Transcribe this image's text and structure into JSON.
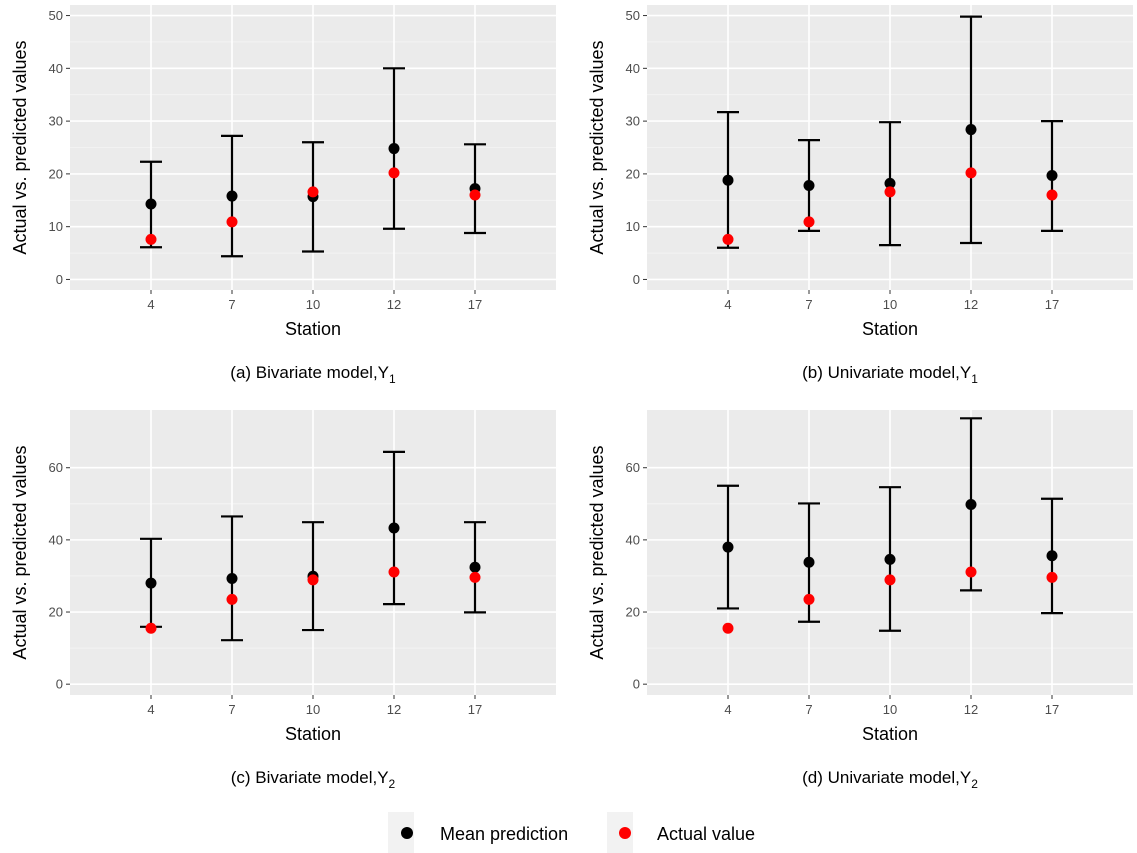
{
  "chart_data": [
    {
      "type": "scatter",
      "panel": "a",
      "caption": "(a) Bivariate model,Y",
      "caption_sub": "1",
      "xlabel": "Station",
      "ylabel": "Actual vs. predicted values",
      "categories": [
        "4",
        "7",
        "10",
        "12",
        "17"
      ],
      "ylim": [
        -2,
        52
      ],
      "yticks": [
        0,
        10,
        20,
        30,
        40,
        50
      ],
      "grid": true,
      "series": [
        {
          "name": "Mean prediction",
          "values": [
            14.3,
            15.8,
            15.7,
            24.8,
            17.2
          ]
        },
        {
          "name": "Actual value",
          "values": [
            7.6,
            10.9,
            16.6,
            20.2,
            16.0
          ]
        }
      ],
      "error_bars": {
        "lower": [
          6.1,
          4.4,
          5.3,
          9.6,
          8.8
        ],
        "upper": [
          22.3,
          27.2,
          26.0,
          40.0,
          25.6
        ]
      }
    },
    {
      "type": "scatter",
      "panel": "b",
      "caption": "(b) Univariate model,Y",
      "caption_sub": "1",
      "xlabel": "Station",
      "ylabel": "Actual vs. predicted values",
      "categories": [
        "4",
        "7",
        "10",
        "12",
        "17"
      ],
      "ylim": [
        -2,
        52
      ],
      "yticks": [
        0,
        10,
        20,
        30,
        40,
        50
      ],
      "grid": true,
      "series": [
        {
          "name": "Mean prediction",
          "values": [
            18.8,
            17.8,
            18.2,
            28.4,
            19.7
          ]
        },
        {
          "name": "Actual value",
          "values": [
            7.6,
            10.9,
            16.6,
            20.2,
            16.0
          ]
        }
      ],
      "error_bars": {
        "lower": [
          6.0,
          9.2,
          6.5,
          6.9,
          9.2
        ],
        "upper": [
          31.7,
          26.4,
          29.8,
          49.8,
          30.0
        ]
      }
    },
    {
      "type": "scatter",
      "panel": "c",
      "caption": "(c) Bivariate model,Y",
      "caption_sub": "2",
      "xlabel": "Station",
      "ylabel": "Actual vs. predicted  values",
      "categories": [
        "4",
        "7",
        "10",
        "12",
        "17"
      ],
      "ylim": [
        -3,
        76
      ],
      "yticks": [
        0,
        20,
        40,
        60
      ],
      "grid": true,
      "series": [
        {
          "name": "Mean prediction",
          "values": [
            28.0,
            29.3,
            29.9,
            43.3,
            32.4
          ]
        },
        {
          "name": "Actual value",
          "values": [
            15.5,
            23.5,
            28.9,
            31.1,
            29.6
          ]
        }
      ],
      "error_bars": {
        "lower": [
          15.9,
          12.2,
          15.0,
          22.2,
          19.9
        ],
        "upper": [
          40.3,
          46.5,
          44.9,
          64.4,
          44.9
        ]
      }
    },
    {
      "type": "scatter",
      "panel": "d",
      "caption": "(d) Univariate model,Y",
      "caption_sub": "2",
      "xlabel": "Station",
      "ylabel": "Actual vs. predicted values",
      "categories": [
        "4",
        "7",
        "10",
        "12",
        "17"
      ],
      "ylim": [
        -3,
        76
      ],
      "yticks": [
        0,
        20,
        40,
        60
      ],
      "grid": true,
      "series": [
        {
          "name": "Mean prediction",
          "values": [
            38.0,
            33.8,
            34.6,
            49.8,
            35.6
          ]
        },
        {
          "name": "Actual value",
          "values": [
            15.5,
            23.5,
            28.9,
            31.1,
            29.6
          ]
        }
      ],
      "error_bars": {
        "lower": [
          21.0,
          17.3,
          14.8,
          26.0,
          19.7
        ],
        "upper": [
          55.0,
          50.1,
          54.6,
          73.7,
          51.4
        ]
      }
    }
  ],
  "legend": {
    "placement": "bottom",
    "items": [
      {
        "label": "Mean prediction",
        "color": "#000000"
      },
      {
        "label": "Actual value",
        "color": "#ff0000"
      }
    ]
  },
  "colors": {
    "panel_background": "#ebebeb",
    "grid_major": "#ffffff",
    "mean_prediction": "#000000",
    "actual_value": "#ff0000"
  }
}
